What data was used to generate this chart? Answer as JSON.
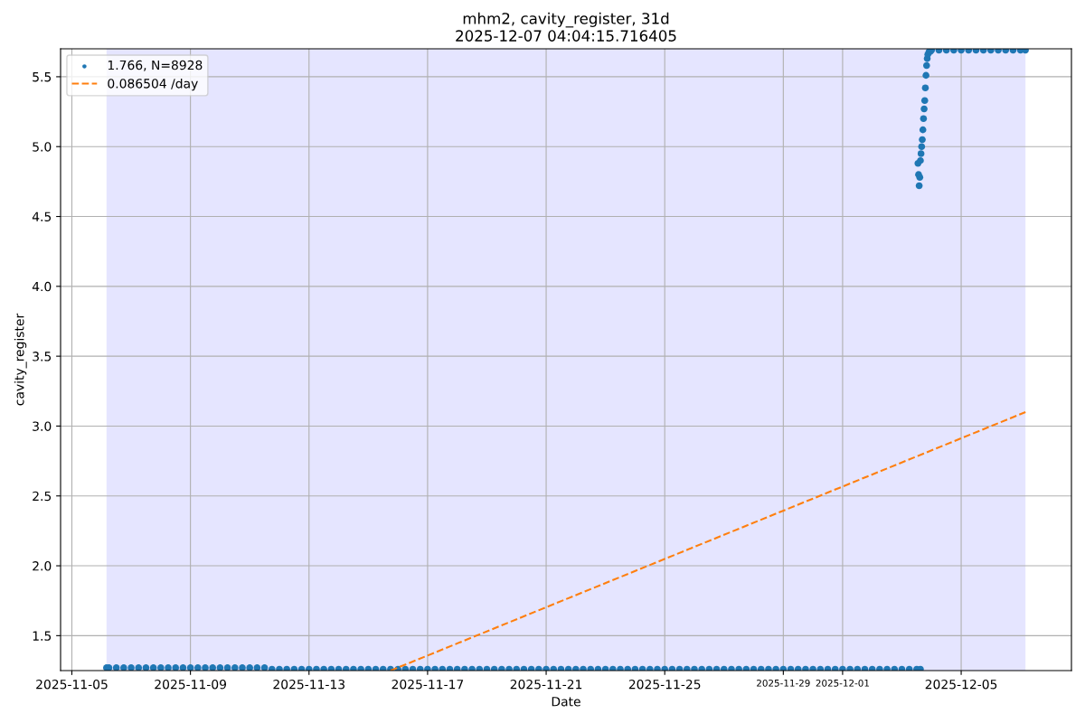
{
  "chart_data": {
    "type": "scatter",
    "title": "mhm2, cavity_register, 31d",
    "subtitle": "2025-12-07 04:04:15.716405",
    "xlabel": "Date",
    "ylabel": "cavity_register",
    "xlim": [
      "2025-11-04T14:52",
      "2025-12-08T17:16"
    ],
    "xticks": [
      "2025-11-05",
      "2025-11-09",
      "2025-11-13",
      "2025-11-17",
      "2025-11-21",
      "2025-11-25",
      "2025-11-29",
      "2025-12-01",
      "2025-12-05"
    ],
    "ylim": [
      1.25,
      5.7
    ],
    "yticks": [
      1.5,
      {
        "value": 2,
        "label": "2.0"
      },
      2.5,
      {
        "value": 3,
        "label": "3.0"
      },
      3.5,
      {
        "value": 4,
        "label": "4.0"
      },
      4.5,
      {
        "value": 5,
        "label": "5.0"
      },
      5.5
    ],
    "grid": true,
    "legend": "top left",
    "bands": [
      {
        "axis": "x",
        "from": "2025-11-06T04:04",
        "to": "2025-12-07T04:04",
        "color": "#e5e5ff"
      }
    ],
    "series": [
      {
        "name": "1.766, N=8928",
        "marker": "circle",
        "color": "#1f77b4",
        "x": [
          "2025-11-06T04:04",
          "2025-11-06T06:00",
          "2025-11-06T12:00",
          "2025-11-06T18:00",
          "2025-11-07T00:00",
          "2025-11-07T06:00",
          "2025-11-07T12:00",
          "2025-11-07T18:00",
          "2025-11-08T00:00",
          "2025-11-08T06:00",
          "2025-11-08T12:00",
          "2025-11-08T18:00",
          "2025-11-09T00:00",
          "2025-11-09T06:00",
          "2025-11-09T12:00",
          "2025-11-09T18:00",
          "2025-11-10T00:00",
          "2025-11-10T06:00",
          "2025-11-10T12:00",
          "2025-11-10T18:00",
          "2025-11-11T00:00",
          "2025-11-11T06:00",
          "2025-11-11T12:00",
          "2025-11-11T18:00",
          "2025-11-12T00:00",
          "2025-11-12T06:00",
          "2025-11-12T12:00",
          "2025-11-12T18:00",
          "2025-11-13T00:00",
          "2025-11-13T06:00",
          "2025-11-13T12:00",
          "2025-11-13T18:00",
          "2025-11-14T00:00",
          "2025-11-14T06:00",
          "2025-11-14T12:00",
          "2025-11-14T18:00",
          "2025-11-15T00:00",
          "2025-11-15T06:00",
          "2025-11-15T12:00",
          "2025-11-15T18:00",
          "2025-11-16T00:00",
          "2025-11-16T06:00",
          "2025-11-16T12:00",
          "2025-11-16T18:00",
          "2025-11-17T00:00",
          "2025-11-17T06:00",
          "2025-11-17T12:00",
          "2025-11-17T18:00",
          "2025-11-18T00:00",
          "2025-11-18T06:00",
          "2025-11-18T12:00",
          "2025-11-18T18:00",
          "2025-11-19T00:00",
          "2025-11-19T06:00",
          "2025-11-19T12:00",
          "2025-11-19T18:00",
          "2025-11-20T00:00",
          "2025-11-20T06:00",
          "2025-11-20T12:00",
          "2025-11-20T18:00",
          "2025-11-21T00:00",
          "2025-11-21T06:00",
          "2025-11-21T12:00",
          "2025-11-21T18:00",
          "2025-11-22T00:00",
          "2025-11-22T06:00",
          "2025-11-22T12:00",
          "2025-11-22T18:00",
          "2025-11-23T00:00",
          "2025-11-23T06:00",
          "2025-11-23T12:00",
          "2025-11-23T18:00",
          "2025-11-24T00:00",
          "2025-11-24T06:00",
          "2025-11-24T12:00",
          "2025-11-24T18:00",
          "2025-11-25T00:00",
          "2025-11-25T06:00",
          "2025-11-25T12:00",
          "2025-11-25T18:00",
          "2025-11-26T00:00",
          "2025-11-26T06:00",
          "2025-11-26T12:00",
          "2025-11-26T18:00",
          "2025-11-27T00:00",
          "2025-11-27T06:00",
          "2025-11-27T12:00",
          "2025-11-27T18:00",
          "2025-11-28T00:00",
          "2025-11-28T06:00",
          "2025-11-28T12:00",
          "2025-11-28T18:00",
          "2025-11-29T00:00",
          "2025-11-29T06:00",
          "2025-11-29T12:00",
          "2025-11-29T18:00",
          "2025-11-30T00:00",
          "2025-11-30T06:00",
          "2025-11-30T12:00",
          "2025-11-30T18:00",
          "2025-12-01T00:00",
          "2025-12-01T06:00",
          "2025-12-01T12:00",
          "2025-12-01T18:00",
          "2025-12-02T00:00",
          "2025-12-02T06:00",
          "2025-12-02T12:00",
          "2025-12-02T18:00",
          "2025-12-03T00:00",
          "2025-12-03T06:00",
          "2025-12-03T12:00",
          "2025-12-03T15:00",
          "2025-12-03T13:00",
          "2025-12-03T13:30",
          "2025-12-03T14:00",
          "2025-12-03T14:30",
          "2025-12-03T15:00",
          "2025-12-03T15:30",
          "2025-12-03T16:00",
          "2025-12-03T16:30",
          "2025-12-03T17:00",
          "2025-12-03T17:30",
          "2025-12-03T18:00",
          "2025-12-03T18:30",
          "2025-12-03T19:00",
          "2025-12-03T19:30",
          "2025-12-03T20:00",
          "2025-12-03T20:30",
          "2025-12-03T21:00",
          "2025-12-03T22:00",
          "2025-12-03T23:00",
          "2025-12-04T00:00",
          "2025-12-04T06:00",
          "2025-12-04T12:00",
          "2025-12-04T18:00",
          "2025-12-05T00:00",
          "2025-12-05T06:00",
          "2025-12-05T12:00",
          "2025-12-05T18:00",
          "2025-12-06T00:00",
          "2025-12-06T06:00",
          "2025-12-06T12:00",
          "2025-12-06T18:00",
          "2025-12-07T00:00",
          "2025-12-07T04:00"
        ],
        "values": [
          1.27,
          1.27,
          1.27,
          1.27,
          1.27,
          1.27,
          1.27,
          1.27,
          1.27,
          1.27,
          1.27,
          1.27,
          1.27,
          1.27,
          1.27,
          1.27,
          1.27,
          1.27,
          1.27,
          1.27,
          1.27,
          1.27,
          1.27,
          1.26,
          1.26,
          1.26,
          1.26,
          1.26,
          1.26,
          1.26,
          1.26,
          1.26,
          1.26,
          1.26,
          1.26,
          1.26,
          1.26,
          1.26,
          1.26,
          1.26,
          1.26,
          1.26,
          1.26,
          1.26,
          1.26,
          1.26,
          1.26,
          1.26,
          1.26,
          1.26,
          1.26,
          1.26,
          1.26,
          1.26,
          1.26,
          1.26,
          1.26,
          1.26,
          1.26,
          1.26,
          1.26,
          1.26,
          1.26,
          1.26,
          1.26,
          1.26,
          1.26,
          1.26,
          1.26,
          1.26,
          1.26,
          1.26,
          1.26,
          1.26,
          1.26,
          1.26,
          1.26,
          1.26,
          1.26,
          1.26,
          1.26,
          1.26,
          1.26,
          1.26,
          1.26,
          1.26,
          1.26,
          1.26,
          1.26,
          1.26,
          1.26,
          1.26,
          1.26,
          1.26,
          1.26,
          1.26,
          1.26,
          1.26,
          1.26,
          1.26,
          1.26,
          1.26,
          1.26,
          1.26,
          1.26,
          1.26,
          1.26,
          1.26,
          1.26,
          1.26,
          1.26,
          1.26,
          4.88,
          4.8,
          4.72,
          4.78,
          4.9,
          4.95,
          5.0,
          5.05,
          5.12,
          5.2,
          5.27,
          5.33,
          5.42,
          5.51,
          5.58,
          5.63,
          5.66,
          5.68,
          5.68,
          5.69,
          5.69,
          5.69,
          5.69,
          5.69,
          5.69,
          5.69,
          5.69,
          5.69,
          5.69,
          5.69,
          5.69,
          5.69,
          5.69
        ]
      },
      {
        "name": "0.086504 /day",
        "type": "line",
        "line_style": "dashed",
        "color": "#ff7f0e",
        "x": [
          "2025-11-15T18:00",
          "2025-12-07T04:04"
        ],
        "values": [
          1.25,
          3.1
        ]
      }
    ]
  }
}
